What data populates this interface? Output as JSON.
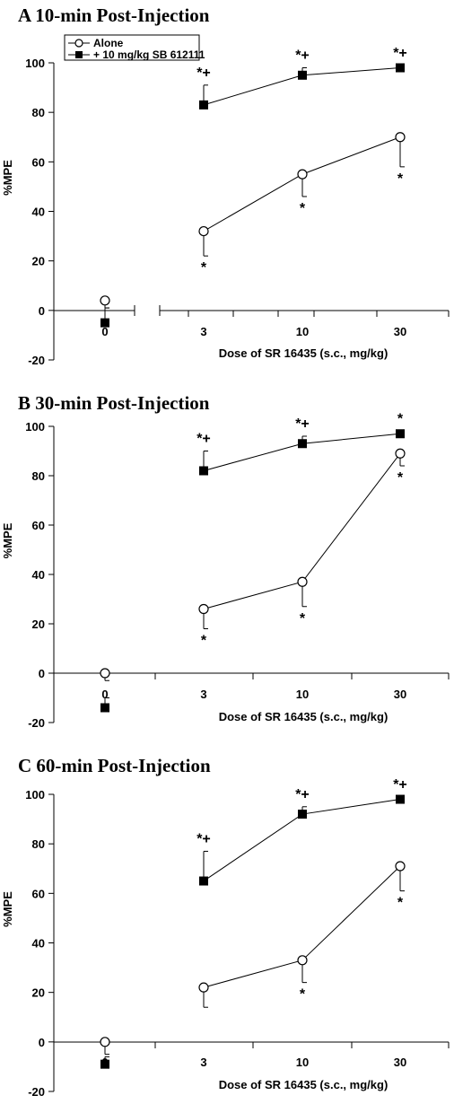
{
  "chart_data": [
    {
      "type": "line",
      "title": "A  10-min Post-Injection",
      "xlabel": "Dose of SR 16435 (s.c., mg/kg)",
      "ylabel": "%MPE",
      "categories": [
        "0",
        "3",
        "10",
        "30"
      ],
      "ylim": [
        -20,
        100
      ],
      "yticks": [
        "-20",
        "0",
        "20",
        "40",
        "60",
        "80",
        "100"
      ],
      "axis_break": true,
      "legend": {
        "entries": [
          "Alone",
          "+ 10 mg/kg SB 612111"
        ],
        "placement": "top-left"
      },
      "series": [
        {
          "name": "Alone",
          "marker": "open-circle",
          "values": [
            4,
            32,
            55,
            70
          ],
          "errors": [
            3,
            10,
            9,
            12
          ],
          "annotations": [
            "",
            "*",
            "*",
            "*"
          ]
        },
        {
          "name": "+ 10 mg/kg SB 612111",
          "marker": "filled-square",
          "values": [
            -5,
            83,
            95,
            98
          ],
          "errors": [
            6,
            8,
            3,
            1
          ],
          "annotations": [
            "",
            "*+",
            "*+",
            "*+"
          ]
        }
      ]
    },
    {
      "type": "line",
      "title": "B  30-min Post-Injection",
      "xlabel": "Dose of SR 16435 (s.c., mg/kg)",
      "ylabel": "%MPE",
      "categories": [
        "0",
        "3",
        "10",
        "30"
      ],
      "ylim": [
        -20,
        100
      ],
      "yticks": [
        "-20",
        "0",
        "20",
        "40",
        "60",
        "80",
        "100"
      ],
      "series": [
        {
          "name": "Alone",
          "marker": "open-circle",
          "values": [
            0,
            26,
            37,
            89
          ],
          "errors": [
            3,
            8,
            10,
            5
          ],
          "annotations": [
            "",
            "*",
            "*",
            "*"
          ]
        },
        {
          "name": "+ 10 mg/kg SB 612111",
          "marker": "filled-square",
          "values": [
            -14,
            82,
            93,
            97
          ],
          "errors": [
            4,
            8,
            3,
            1
          ],
          "annotations": [
            "",
            "*+",
            "*+",
            "*"
          ]
        }
      ]
    },
    {
      "type": "line",
      "title": "C  60-min Post-Injection",
      "xlabel": "Dose of SR 16435 (s.c., mg/kg)",
      "ylabel": "%MPE",
      "categories": [
        "0",
        "3",
        "10",
        "30"
      ],
      "ylim": [
        -20,
        100
      ],
      "yticks": [
        "-20",
        "0",
        "20",
        "40",
        "60",
        "80",
        "100"
      ],
      "series": [
        {
          "name": "Alone",
          "marker": "open-circle",
          "values": [
            0,
            22,
            33,
            71
          ],
          "errors": [
            5,
            8,
            9,
            10
          ],
          "annotations": [
            "",
            "",
            "*",
            "*"
          ]
        },
        {
          "name": "+ 10 mg/kg SB 612111",
          "marker": "filled-square",
          "values": [
            -9,
            65,
            92,
            98
          ],
          "errors": [
            3,
            12,
            3,
            1
          ],
          "annotations": [
            "",
            "*+",
            "*+",
            "*+"
          ]
        }
      ]
    }
  ]
}
